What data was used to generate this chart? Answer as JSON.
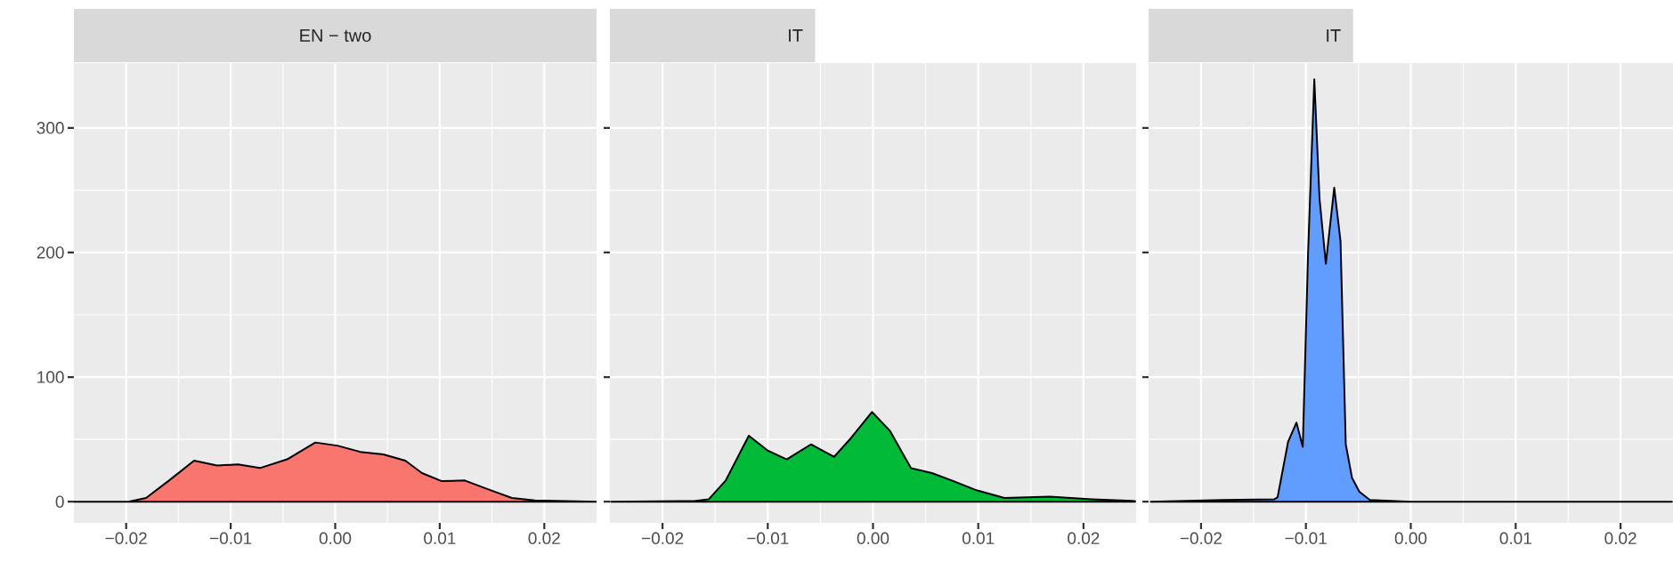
{
  "chart_data": [
    {
      "type": "area",
      "title": "EN − two",
      "grid": true,
      "x": [
        -0.025,
        -0.0198,
        -0.0181,
        -0.0159,
        -0.0135,
        -0.0113,
        -0.0093,
        -0.0072,
        -0.0046,
        -0.0019,
        0.0002,
        0.0024,
        0.0046,
        0.0067,
        0.0083,
        0.0102,
        0.0124,
        0.0146,
        0.0169,
        0.0191,
        0.025
      ],
      "series": [
        {
          "color": "#f8766d",
          "values": [
            0,
            0,
            3,
            17,
            33,
            29,
            30,
            27,
            34,
            47.5,
            45,
            40,
            38,
            33,
            23,
            16.5,
            17,
            10,
            3,
            1,
            0
          ]
        }
      ],
      "xlim": [
        -0.025,
        0.025
      ],
      "ylim": [
        -17,
        352
      ],
      "xticks": [
        {
          "value": -0.02,
          "label": "−0.02"
        },
        {
          "value": -0.01,
          "label": "−0.01"
        },
        {
          "value": 0,
          "label": "0.00"
        },
        {
          "value": 0.01,
          "label": "0.01"
        },
        {
          "value": 0.02,
          "label": "0.02"
        }
      ],
      "yticks": [
        0,
        100,
        200,
        300
      ]
    },
    {
      "type": "area",
      "title": "IT",
      "grid": true,
      "tick_labels": "x",
      "x": [
        -0.0249,
        -0.017,
        -0.0156,
        -0.014,
        -0.0118,
        -0.01,
        -0.0082,
        -0.0059,
        -0.0037,
        -0.0021,
        -0.0001,
        0.0016,
        0.0036,
        0.0056,
        0.0075,
        0.0099,
        0.0125,
        0.0168,
        0.0208,
        0.0249
      ],
      "series": [
        {
          "color": "#00ba38",
          "values": [
            0,
            0.5,
            2,
            17,
            53,
            41,
            34,
            46,
            36,
            51,
            72,
            57,
            27,
            23,
            17,
            9,
            3,
            4,
            2,
            0.5
          ]
        }
      ],
      "xlim": [
        -0.025,
        0.025
      ],
      "ylim": [
        -17,
        352
      ],
      "xticks": [
        {
          "value": -0.02,
          "label": "−0.02"
        },
        {
          "value": -0.01,
          "label": "−0.01"
        },
        {
          "value": 0,
          "label": "0.00"
        },
        {
          "value": 0.01,
          "label": "0.01"
        },
        {
          "value": 0.02,
          "label": "0.02"
        }
      ],
      "yticks": [
        0,
        100,
        200,
        300
      ]
    },
    {
      "type": "area",
      "title": "IT",
      "grid": true,
      "tick_labels": "x",
      "x": [
        -0.0248,
        -0.0179,
        -0.013,
        -0.0127,
        -0.0117,
        -0.0109,
        -0.0103,
        -0.0098,
        -0.0092,
        -0.0087,
        -0.0081,
        -0.0073,
        -0.0067,
        -0.0062,
        -0.0056,
        -0.0049,
        -0.0039,
        0,
        0.0249
      ],
      "series": [
        {
          "color": "#619cff",
          "values": [
            0,
            1.4,
            2,
            3.6,
            48,
            63.5,
            44,
            198,
            339,
            243,
            191,
            252,
            209,
            46,
            19,
            8,
            1.4,
            0,
            0
          ]
        }
      ],
      "xlim": [
        -0.025,
        0.025
      ],
      "ylim": [
        -17,
        352
      ],
      "xticks": [
        {
          "value": -0.02,
          "label": "−0.02"
        },
        {
          "value": -0.01,
          "label": "−0.01"
        },
        {
          "value": 0,
          "label": "0.00"
        },
        {
          "value": 0.01,
          "label": "0.01"
        },
        {
          "value": 0.02,
          "label": "0.02"
        }
      ],
      "yticks": [
        0,
        100,
        200,
        300
      ]
    }
  ]
}
